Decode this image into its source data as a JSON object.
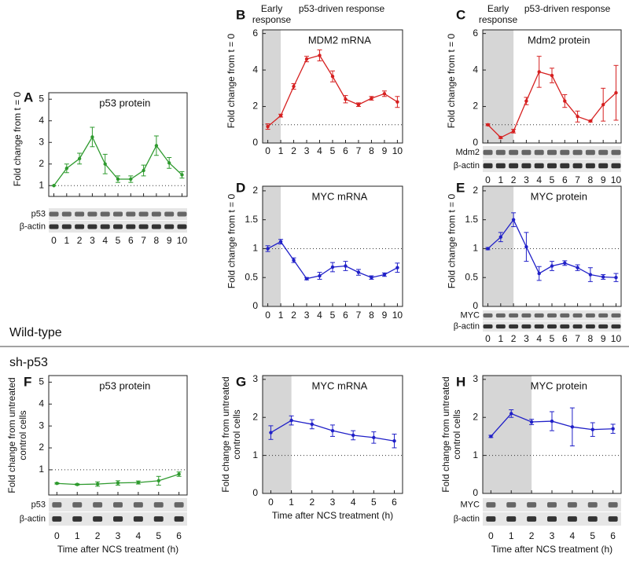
{
  "chart_data": [
    {
      "type": "line",
      "panel": "A",
      "title": "p53 protein",
      "ylabel": "Fold change from t = 0",
      "color": "#2e9a2e",
      "x": [
        0,
        1,
        2,
        3,
        4,
        5,
        6,
        7,
        8,
        9,
        10
      ],
      "xticks": [
        0,
        1,
        2,
        3,
        4,
        5,
        6,
        7,
        8,
        9,
        10
      ],
      "xlim": [
        -0.4,
        10.4
      ],
      "values": [
        1,
        1.8,
        2.25,
        3.25,
        2.0,
        1.3,
        1.3,
        1.7,
        2.85,
        2.05,
        1.5
      ],
      "errors": [
        0,
        0.2,
        0.25,
        0.45,
        0.45,
        0.15,
        0.15,
        0.25,
        0.45,
        0.25,
        0.15
      ],
      "ylim": [
        0.5,
        5.3
      ],
      "yticks": [
        1,
        2,
        3,
        4,
        5
      ],
      "reference_line": 1,
      "blot_labels": [
        "p53",
        "β-actin"
      ]
    },
    {
      "type": "line",
      "panel": "B",
      "title": "MDM2 mRNA",
      "ylabel": "Fold change from t = 0",
      "color": "#d62020",
      "annotations": [
        "Early response",
        "p53-driven response"
      ],
      "shade_end": 1,
      "x": [
        0,
        1,
        2,
        3,
        4,
        5,
        6,
        7,
        8,
        9,
        10
      ],
      "xticks": [
        0,
        1,
        2,
        3,
        4,
        5,
        6,
        7,
        8,
        9,
        10
      ],
      "xlim": [
        -0.4,
        10.4
      ],
      "values": [
        0.9,
        1.5,
        3.1,
        4.6,
        4.8,
        3.65,
        2.4,
        2.1,
        2.45,
        2.7,
        2.25
      ],
      "errors": [
        0.15,
        0.08,
        0.15,
        0.15,
        0.3,
        0.3,
        0.2,
        0.1,
        0.1,
        0.15,
        0.3
      ],
      "ylim": [
        0,
        6.2
      ],
      "yticks": [
        0,
        2,
        4,
        6
      ],
      "reference_line": 1
    },
    {
      "type": "line",
      "panel": "C",
      "title": "Mdm2 protein",
      "ylabel": "Fold change from t = 0",
      "color": "#d62020",
      "annotations": [
        "Early response",
        "p53-driven response"
      ],
      "shade_end": 2,
      "x": [
        0,
        1,
        2,
        3,
        4,
        5,
        6,
        7,
        8,
        9,
        10
      ],
      "xticks": [
        0,
        1,
        2,
        3,
        4,
        5,
        6,
        7,
        8,
        9,
        10
      ],
      "xlim": [
        -0.4,
        10.4
      ],
      "values": [
        1.0,
        0.3,
        0.65,
        2.3,
        3.9,
        3.7,
        2.3,
        1.45,
        1.2,
        2.1,
        2.75
      ],
      "errors": [
        0.05,
        0.05,
        0.1,
        0.2,
        0.85,
        0.4,
        0.35,
        0.3,
        0.05,
        0.9,
        1.5
      ],
      "ylim": [
        0,
        6.2
      ],
      "yticks": [
        0,
        2,
        4,
        6
      ],
      "reference_line": 1,
      "blot_labels": [
        "Mdm2",
        "β-actin"
      ]
    },
    {
      "type": "line",
      "panel": "D",
      "title": "MYC mRNA",
      "ylabel": "Fold change from t = 0",
      "color": "#2020c8",
      "shade_end": 1,
      "x": [
        0,
        1,
        2,
        3,
        4,
        5,
        6,
        7,
        8,
        9,
        10
      ],
      "xticks": [
        0,
        1,
        2,
        3,
        4,
        5,
        6,
        7,
        8,
        9,
        10
      ],
      "xlim": [
        -0.4,
        10.4
      ],
      "values": [
        1.0,
        1.12,
        0.8,
        0.48,
        0.53,
        0.68,
        0.7,
        0.59,
        0.5,
        0.55,
        0.67
      ],
      "errors": [
        0.05,
        0.04,
        0.04,
        0.02,
        0.06,
        0.08,
        0.08,
        0.05,
        0.03,
        0.03,
        0.08
      ],
      "ylim": [
        0,
        2.08
      ],
      "yticks": [
        0,
        0.5,
        1,
        1.5,
        2
      ],
      "reference_line": 1
    },
    {
      "type": "line",
      "panel": "E",
      "title": "MYC protein",
      "ylabel": "Fold change from t = 0",
      "color": "#2020c8",
      "shade_end": 2,
      "x": [
        0,
        1,
        2,
        3,
        4,
        5,
        6,
        7,
        8,
        9,
        10
      ],
      "xticks": [
        0,
        1,
        2,
        3,
        4,
        5,
        6,
        7,
        8,
        9,
        10
      ],
      "xlim": [
        -0.4,
        10.4
      ],
      "values": [
        1.0,
        1.2,
        1.5,
        1.03,
        0.57,
        0.7,
        0.75,
        0.67,
        0.55,
        0.51,
        0.5
      ],
      "errors": [
        0.02,
        0.08,
        0.12,
        0.25,
        0.12,
        0.08,
        0.04,
        0.05,
        0.12,
        0.04,
        0.07
      ],
      "ylim": [
        0,
        2.08
      ],
      "yticks": [
        0,
        0.5,
        1,
        1.5,
        2
      ],
      "reference_line": 1,
      "blot_labels": [
        "MYC",
        "β-actin"
      ]
    },
    {
      "type": "line",
      "panel": "F",
      "title": "p53 protein",
      "ylabel": "Fold change from untreated control cells",
      "xlabel": "Time after NCS treatment (h)",
      "color": "#2e9a2e",
      "x": [
        0,
        1,
        2,
        3,
        4,
        5,
        6
      ],
      "xticks": [
        0,
        1,
        2,
        3,
        4,
        5,
        6
      ],
      "xlim": [
        -0.4,
        6.4
      ],
      "values": [
        0.38,
        0.33,
        0.35,
        0.4,
        0.42,
        0.5,
        0.8
      ],
      "errors": [
        0.03,
        0.03,
        0.1,
        0.1,
        0.07,
        0.2,
        0.1
      ],
      "ylim": [
        -0.15,
        5.3
      ],
      "yticks": [
        1,
        2,
        3,
        4,
        5
      ],
      "reference_line": 1,
      "blot_labels": [
        "p53",
        "β-actin"
      ]
    },
    {
      "type": "line",
      "panel": "G",
      "title": "MYC mRNA",
      "ylabel": "Fold change from untreated control cells",
      "xlabel": "Time after NCS treatment (h)",
      "color": "#2020c8",
      "shade_end": 1,
      "x": [
        0,
        1,
        2,
        3,
        4,
        5,
        6
      ],
      "xticks": [
        0,
        1,
        2,
        3,
        4,
        5,
        6
      ],
      "xlim": [
        -0.4,
        6.4
      ],
      "values": [
        1.6,
        1.92,
        1.82,
        1.65,
        1.53,
        1.47,
        1.38
      ],
      "errors": [
        0.18,
        0.12,
        0.12,
        0.15,
        0.12,
        0.15,
        0.18
      ],
      "ylim": [
        0,
        3.1
      ],
      "yticks": [
        0,
        1,
        2,
        3
      ],
      "reference_line": 1
    },
    {
      "type": "line",
      "panel": "H",
      "title": "MYC protein",
      "ylabel": "Fold change from untreated control cells",
      "xlabel": "Time after NCS treatment (h)",
      "color": "#2020c8",
      "shade_end": 2,
      "x": [
        0,
        1,
        2,
        3,
        4,
        5,
        6
      ],
      "xticks": [
        0,
        1,
        2,
        3,
        4,
        5,
        6
      ],
      "xlim": [
        -0.4,
        6.4
      ],
      "values": [
        1.5,
        2.1,
        1.88,
        1.9,
        1.75,
        1.68,
        1.7
      ],
      "errors": [
        0.03,
        0.1,
        0.07,
        0.25,
        0.5,
        0.18,
        0.12
      ],
      "ylim": [
        0,
        3.1
      ],
      "yticks": [
        0,
        1,
        2,
        3
      ],
      "reference_line": 1,
      "blot_labels": [
        "MYC",
        "β-actin"
      ]
    }
  ],
  "sections": [
    "Wild-type",
    "sh-p53"
  ]
}
